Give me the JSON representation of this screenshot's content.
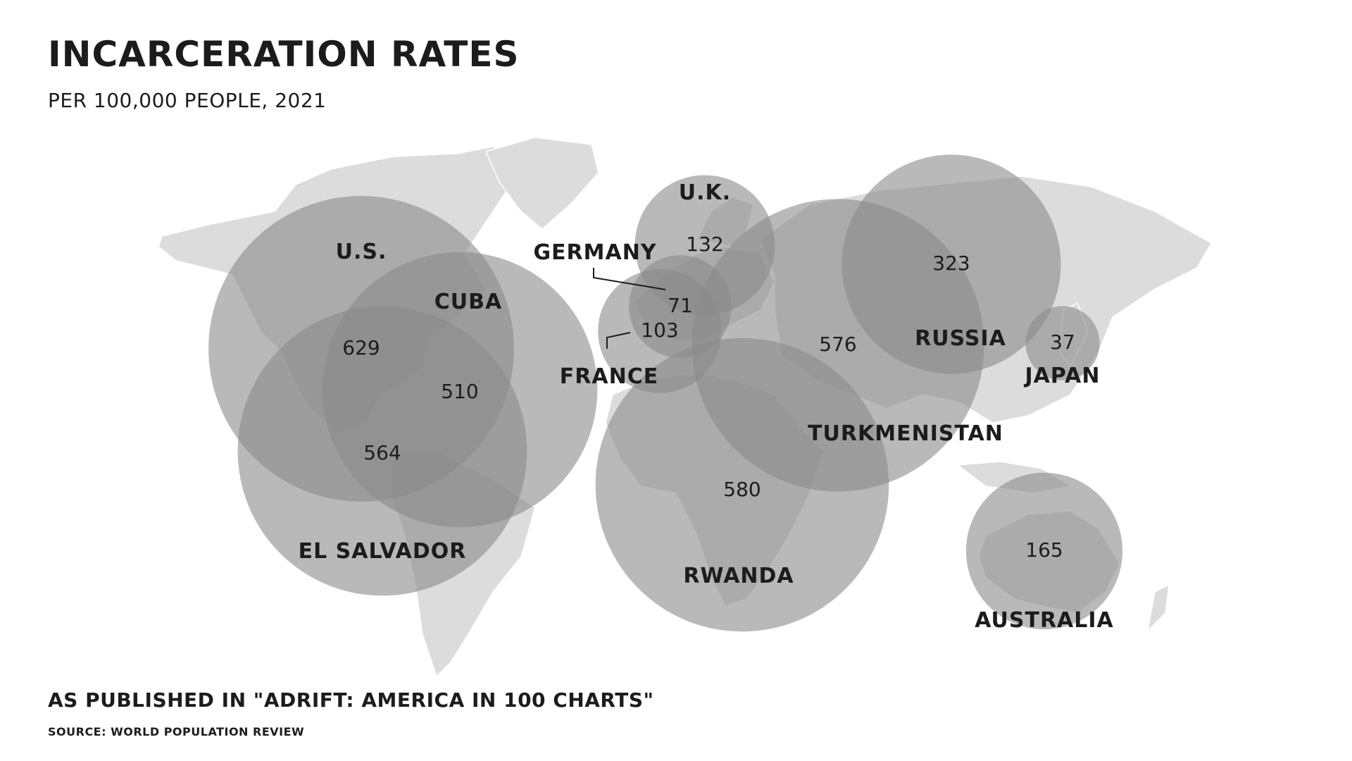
{
  "title": "INCARCERATION RATES",
  "subtitle": "PER 100,000 PEOPLE, 2021",
  "footer": {
    "published": "AS PUBLISHED IN \"ADRIFT: AMERICA IN 100 CHARTS\"",
    "source": "SOURCE: WORLD POPULATION REVIEW"
  },
  "colors": {
    "land": "#dcdcdc",
    "bubble": "#8a8a8a",
    "text": "#1c1c1c"
  },
  "chart_data": {
    "type": "bubble-map",
    "title": "INCARCERATION RATES",
    "subtitle": "PER 100,000 PEOPLE, 2021",
    "points": [
      {
        "country": "U.S.",
        "value": 629
      },
      {
        "country": "CUBA",
        "value": 510
      },
      {
        "country": "EL SALVADOR",
        "value": 564
      },
      {
        "country": "U.K.",
        "value": 132
      },
      {
        "country": "GERMANY",
        "value": 71
      },
      {
        "country": "FRANCE",
        "value": 103
      },
      {
        "country": "RUSSIA",
        "value": 323
      },
      {
        "country": "TURKMENISTAN",
        "value": 576
      },
      {
        "country": "JAPAN",
        "value": 37
      },
      {
        "country": "RWANDA",
        "value": 580
      },
      {
        "country": "AUSTRALIA",
        "value": 165
      }
    ]
  }
}
